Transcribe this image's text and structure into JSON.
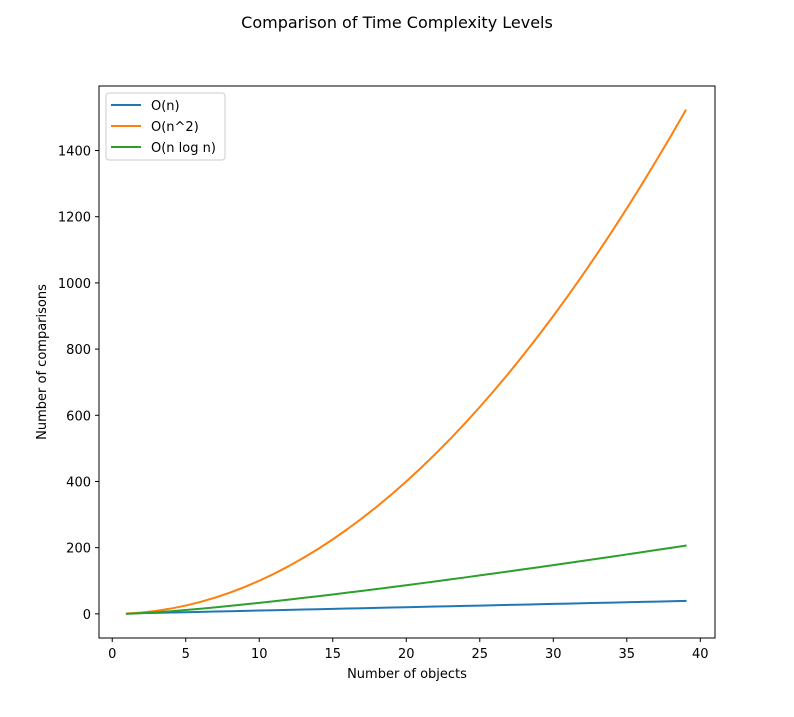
{
  "chart_data": {
    "type": "line",
    "title": "Comparison of Time Complexity Levels",
    "xlabel": "Number of objects",
    "ylabel": "Number of comparisons",
    "xlim": [
      -0.9,
      41.0
    ],
    "ylim": [
      -73,
      1595
    ],
    "xticks": [
      "0",
      "5",
      "10",
      "15",
      "20",
      "25",
      "30",
      "35",
      "40"
    ],
    "yticks": [
      "0",
      "200",
      "400",
      "600",
      "800",
      "1000",
      "1200",
      "1400"
    ],
    "x": [
      1,
      2,
      3,
      4,
      5,
      6,
      7,
      8,
      9,
      10,
      11,
      12,
      13,
      14,
      15,
      16,
      17,
      18,
      19,
      20,
      21,
      22,
      23,
      24,
      25,
      26,
      27,
      28,
      29,
      30,
      31,
      32,
      33,
      34,
      35,
      36,
      37,
      38,
      39
    ],
    "grid": false,
    "legend_position": "upper-left",
    "series": [
      {
        "name": "O(n)",
        "color": "#1f77b4",
        "values": [
          1,
          2,
          3,
          4,
          5,
          6,
          7,
          8,
          9,
          10,
          11,
          12,
          13,
          14,
          15,
          16,
          17,
          18,
          19,
          20,
          21,
          22,
          23,
          24,
          25,
          26,
          27,
          28,
          29,
          30,
          31,
          32,
          33,
          34,
          35,
          36,
          37,
          38,
          39
        ]
      },
      {
        "name": "O(n^2)",
        "color": "#ff7f0e",
        "values": [
          1,
          4,
          9,
          16,
          25,
          36,
          49,
          64,
          81,
          100,
          121,
          144,
          169,
          196,
          225,
          256,
          289,
          324,
          361,
          400,
          441,
          484,
          529,
          576,
          625,
          676,
          729,
          784,
          841,
          900,
          961,
          1024,
          1089,
          1156,
          1225,
          1296,
          1369,
          1444,
          1521
        ]
      },
      {
        "name": "O(n log n)",
        "color": "#2ca02c",
        "values": [
          0,
          2,
          4.75,
          8,
          11.61,
          15.51,
          19.65,
          24,
          28.53,
          33.22,
          38.05,
          43.02,
          48.11,
          53.3,
          58.6,
          64,
          69.49,
          75.06,
          80.71,
          86.44,
          92.24,
          98.11,
          104.04,
          110.04,
          116.1,
          122.21,
          128.38,
          134.6,
          140.88,
          147.21,
          153.58,
          160,
          166.47,
          172.98,
          179.53,
          186.13,
          192.77,
          199.44,
          206.15
        ]
      }
    ]
  }
}
